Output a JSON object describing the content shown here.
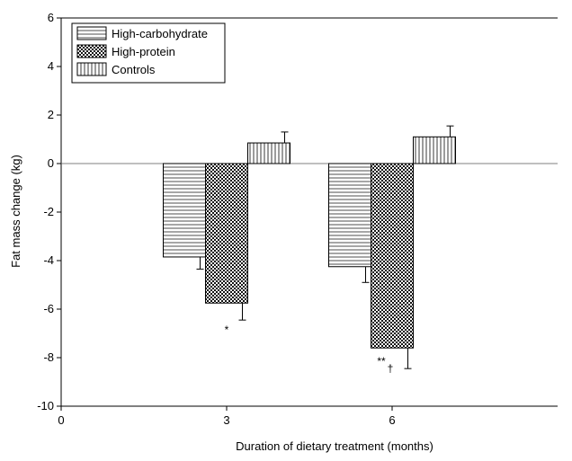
{
  "chart_data": {
    "type": "bar",
    "title": "",
    "xlabel": "Duration of dietary treatment (months)",
    "ylabel": "Fat mass change (kg)",
    "ylim": [
      -10,
      6
    ],
    "yticks": [
      -10,
      -8,
      -6,
      -4,
      -2,
      0,
      2,
      4,
      6
    ],
    "yticklabels": [
      "-10",
      "-8",
      "-6",
      "-4",
      "-2",
      "0",
      "2",
      "4",
      "6"
    ],
    "xlim": [
      0,
      9
    ],
    "xticks": [
      0,
      3,
      6
    ],
    "xticklabels": [
      "0",
      "3",
      "6"
    ],
    "legend_position": "top-left",
    "grid": false,
    "categories": [
      "3",
      "6"
    ],
    "category_x": [
      3,
      6
    ],
    "series": [
      {
        "name": "High-carbohydrate",
        "pattern": "horizontal-lines",
        "values": [
          -3.85,
          -4.25
        ],
        "errors": [
          0.5,
          0.65
        ]
      },
      {
        "name": "High-protein",
        "pattern": "crosshatch",
        "values": [
          -5.75,
          -7.6
        ],
        "errors": [
          0.7,
          0.85
        ]
      },
      {
        "name": "Controls",
        "pattern": "vertical-lines",
        "values": [
          0.85,
          1.1
        ],
        "errors": [
          0.45,
          0.45
        ]
      }
    ],
    "annotations": [
      {
        "text": "*",
        "category": "3",
        "y": -7.0
      },
      {
        "text": "**",
        "category": "6",
        "y": -8.3
      },
      {
        "text": "†",
        "category": "6",
        "y": -8.6
      }
    ]
  }
}
